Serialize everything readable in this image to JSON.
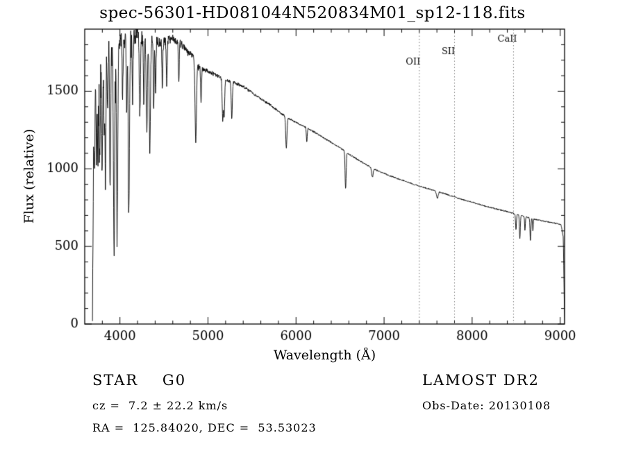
{
  "title": "spec-56301-HD081044N520834M01_sp12-118.fits",
  "footer": {
    "class_label": "STAR    G0",
    "survey": "LAMOST DR2",
    "cz": "cz =  7.2 ± 22.2 km/s",
    "obs_date": "Obs-Date: 20130108",
    "radec": "RA =  125.84020, DEC =  53.53023"
  },
  "chart_data": {
    "type": "line",
    "title": "spec-56301-HD081044N520834M01_sp12-118.fits",
    "xlabel": "Wavelength (Å)",
    "ylabel": "Flux (relative)",
    "xlim": [
      3600,
      9050
    ],
    "ylim": [
      0,
      1900
    ],
    "xticks": [
      4000,
      5000,
      6000,
      7000,
      8000,
      9000
    ],
    "yticks": [
      0,
      500,
      1000,
      1500
    ],
    "grid": false,
    "legend": false,
    "line_color": "#000000",
    "marker_line_color": "#777777",
    "marker_lines": [
      {
        "label": "OII",
        "x": 7400,
        "label_flux": 1685
      },
      {
        "label": "SII",
        "x": 7800,
        "label_flux": 1752
      },
      {
        "label": "CaII",
        "x": 8470,
        "label_flux": 1833
      }
    ],
    "edges": {
      "start": 3688,
      "end": 9052,
      "step": 3
    },
    "continuum": [
      [
        3688,
        0
      ],
      [
        3694,
        600
      ],
      [
        3700,
        1100
      ],
      [
        3708,
        1450
      ],
      [
        3715,
        1600
      ],
      [
        3730,
        1680
      ],
      [
        3760,
        1720
      ],
      [
        3800,
        1760
      ],
      [
        3850,
        1790
      ],
      [
        3900,
        1810
      ],
      [
        3950,
        1800
      ],
      [
        4000,
        1820
      ],
      [
        4050,
        1840
      ],
      [
        4100,
        1830
      ],
      [
        4150,
        1850
      ],
      [
        4200,
        1860
      ],
      [
        4250,
        1840
      ],
      [
        4300,
        1830
      ],
      [
        4350,
        1840
      ],
      [
        4400,
        1850
      ],
      [
        4450,
        1820
      ],
      [
        4500,
        1810
      ],
      [
        4550,
        1830
      ],
      [
        4600,
        1840
      ],
      [
        4650,
        1820
      ],
      [
        4700,
        1800
      ],
      [
        4750,
        1770
      ],
      [
        4800,
        1740
      ],
      [
        4860,
        1700
      ],
      [
        4900,
        1660
      ],
      [
        4950,
        1640
      ],
      [
        5000,
        1630
      ],
      [
        5100,
        1600
      ],
      [
        5200,
        1570
      ],
      [
        5300,
        1555
      ],
      [
        5400,
        1530
      ],
      [
        5500,
        1490
      ],
      [
        5600,
        1450
      ],
      [
        5700,
        1415
      ],
      [
        5800,
        1370
      ],
      [
        5900,
        1330
      ],
      [
        6000,
        1300
      ],
      [
        6100,
        1270
      ],
      [
        6200,
        1240
      ],
      [
        6300,
        1205
      ],
      [
        6400,
        1170
      ],
      [
        6500,
        1135
      ],
      [
        6600,
        1095
      ],
      [
        6700,
        1060
      ],
      [
        6800,
        1025
      ],
      [
        6900,
        995
      ],
      [
        7000,
        970
      ],
      [
        7100,
        948
      ],
      [
        7200,
        928
      ],
      [
        7300,
        908
      ],
      [
        7400,
        888
      ],
      [
        7500,
        872
      ],
      [
        7600,
        855
      ],
      [
        7700,
        838
      ],
      [
        7800,
        818
      ],
      [
        7900,
        800
      ],
      [
        8000,
        785
      ],
      [
        8100,
        768
      ],
      [
        8200,
        752
      ],
      [
        8300,
        738
      ],
      [
        8400,
        724
      ],
      [
        8500,
        708
      ],
      [
        8600,
        692
      ],
      [
        8700,
        676
      ],
      [
        8800,
        664
      ],
      [
        8900,
        655
      ],
      [
        8960,
        648
      ],
      [
        9010,
        640
      ],
      [
        9035,
        560
      ],
      [
        9048,
        80
      ],
      [
        9052,
        0
      ]
    ],
    "absorption_lines": [
      {
        "center": 3712,
        "depth": 500,
        "width": 5
      },
      {
        "center": 3734,
        "depth": 650,
        "width": 5
      },
      {
        "center": 3750,
        "depth": 700,
        "width": 5
      },
      {
        "center": 3771,
        "depth": 650,
        "width": 5
      },
      {
        "center": 3798,
        "depth": 750,
        "width": 6
      },
      {
        "center": 3820,
        "depth": 500,
        "width": 5
      },
      {
        "center": 3835,
        "depth": 850,
        "width": 6
      },
      {
        "center": 3860,
        "depth": 450,
        "width": 5
      },
      {
        "center": 3889,
        "depth": 950,
        "width": 6
      },
      {
        "center": 3933,
        "depth": 1350,
        "width": 7
      },
      {
        "center": 3968,
        "depth": 1200,
        "width": 7
      },
      {
        "center": 4030,
        "depth": 350,
        "width": 5
      },
      {
        "center": 4077,
        "depth": 400,
        "width": 5
      },
      {
        "center": 4101,
        "depth": 1120,
        "width": 7
      },
      {
        "center": 4144,
        "depth": 380,
        "width": 5
      },
      {
        "center": 4226,
        "depth": 520,
        "width": 6
      },
      {
        "center": 4271,
        "depth": 380,
        "width": 5
      },
      {
        "center": 4305,
        "depth": 560,
        "width": 7
      },
      {
        "center": 4340,
        "depth": 720,
        "width": 7
      },
      {
        "center": 4383,
        "depth": 480,
        "width": 5
      },
      {
        "center": 4405,
        "depth": 350,
        "width": 5
      },
      {
        "center": 4481,
        "depth": 280,
        "width": 5
      },
      {
        "center": 4531,
        "depth": 260,
        "width": 5
      },
      {
        "center": 4668,
        "depth": 260,
        "width": 5
      },
      {
        "center": 4861,
        "depth": 520,
        "width": 8
      },
      {
        "center": 4921,
        "depth": 220,
        "width": 5
      },
      {
        "center": 5167,
        "depth": 260,
        "width": 6
      },
      {
        "center": 5183,
        "depth": 240,
        "width": 6
      },
      {
        "center": 5270,
        "depth": 240,
        "width": 6
      },
      {
        "center": 5890,
        "depth": 200,
        "width": 7
      },
      {
        "center": 6122,
        "depth": 90,
        "width": 5
      },
      {
        "center": 6563,
        "depth": 240,
        "width": 6
      },
      {
        "center": 6867,
        "depth": 60,
        "width": 8
      },
      {
        "center": 7605,
        "depth": 45,
        "width": 9
      },
      {
        "center": 8498,
        "depth": 100,
        "width": 5
      },
      {
        "center": 8542,
        "depth": 150,
        "width": 5
      },
      {
        "center": 8600,
        "depth": 90,
        "width": 4
      },
      {
        "center": 8662,
        "depth": 140,
        "width": 5
      },
      {
        "center": 8690,
        "depth": 80,
        "width": 4
      }
    ],
    "noise_profile": [
      [
        3688,
        85
      ],
      [
        3800,
        80
      ],
      [
        4000,
        65
      ],
      [
        4200,
        55
      ],
      [
        4400,
        42
      ],
      [
        4600,
        30
      ],
      [
        4800,
        20
      ],
      [
        5000,
        14
      ],
      [
        5300,
        10
      ],
      [
        5600,
        8
      ],
      [
        6000,
        6
      ],
      [
        6500,
        5
      ],
      [
        7000,
        4.5
      ],
      [
        7600,
        4
      ],
      [
        8200,
        4
      ],
      [
        9000,
        4
      ]
    ]
  }
}
